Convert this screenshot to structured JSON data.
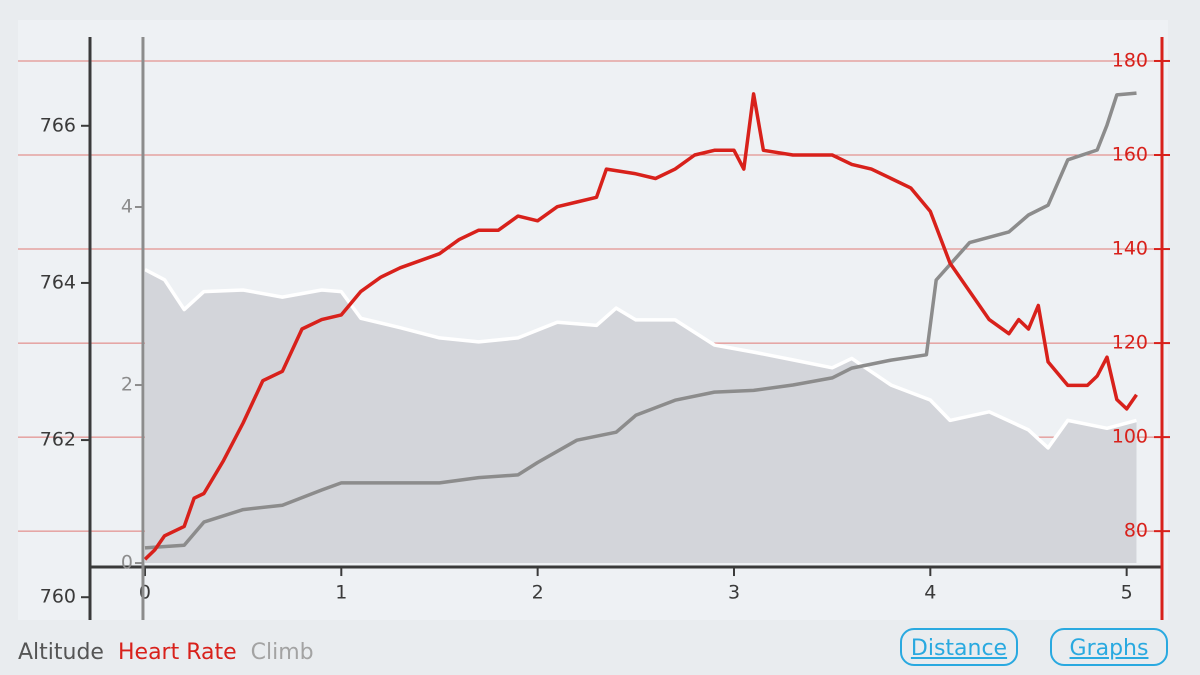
{
  "chart_data": {
    "type": "line",
    "xlim": [
      -0.28,
      5.18
    ],
    "xticks": [
      0,
      1,
      2,
      3,
      4,
      5
    ],
    "ylim": [
      759.71,
      767.13
    ],
    "yticks": [
      760,
      762,
      764,
      766
    ],
    "y2lim": [
      -0.64,
      5.91
    ],
    "y2ticks": [
      0,
      2,
      4
    ],
    "y3lim": [
      61.1,
      185.1
    ],
    "y3ticks": [
      80,
      100,
      120,
      140,
      160,
      180
    ],
    "grid": true,
    "series": [
      {
        "name": "Altitude",
        "color": "#ffffff",
        "fill": "#d3d5da",
        "axis": "y",
        "x": [
          0,
          0.1,
          0.2,
          0.3,
          0.5,
          0.7,
          0.9,
          1.0,
          1.1,
          1.3,
          1.5,
          1.7,
          1.9,
          2.1,
          2.3,
          2.4,
          2.5,
          2.7,
          2.9,
          3.1,
          3.3,
          3.5,
          3.6,
          3.8,
          4.0,
          4.1,
          4.3,
          4.5,
          4.6,
          4.7,
          4.9,
          5.05
        ],
        "values": [
          764.17,
          764.04,
          763.66,
          763.89,
          763.91,
          763.82,
          763.91,
          763.89,
          763.55,
          763.43,
          763.3,
          763.25,
          763.3,
          763.5,
          763.46,
          763.68,
          763.53,
          763.53,
          763.21,
          763.12,
          763.02,
          762.92,
          763.04,
          762.7,
          762.51,
          762.25,
          762.36,
          762.13,
          761.9,
          762.25,
          762.15,
          762.25
        ]
      },
      {
        "name": "Heart Rate",
        "color": "#d8211b",
        "axis": "y3",
        "x": [
          0,
          0.05,
          0.1,
          0.2,
          0.25,
          0.3,
          0.4,
          0.5,
          0.6,
          0.7,
          0.8,
          0.9,
          1.0,
          1.1,
          1.2,
          1.3,
          1.5,
          1.6,
          1.7,
          1.8,
          1.9,
          2.0,
          2.1,
          2.2,
          2.3,
          2.35,
          2.5,
          2.6,
          2.7,
          2.8,
          2.9,
          3.0,
          3.05,
          3.1,
          3.15,
          3.3,
          3.5,
          3.6,
          3.7,
          3.8,
          3.9,
          4.0,
          4.1,
          4.2,
          4.3,
          4.4,
          4.45,
          4.5,
          4.55,
          4.6,
          4.7,
          4.8,
          4.85,
          4.9,
          4.95,
          5.0,
          5.05
        ],
        "values": [
          74,
          76,
          79,
          81,
          87,
          88,
          95,
          103,
          112,
          114,
          123,
          125,
          126,
          131,
          134,
          136,
          139,
          142,
          144,
          144,
          147,
          146,
          149,
          150,
          151,
          157,
          156,
          155,
          157,
          160,
          161,
          161,
          157,
          173,
          161,
          160,
          160,
          158,
          157,
          155,
          153,
          148,
          137,
          131,
          125,
          122,
          125,
          123,
          128,
          116,
          111,
          111,
          113,
          117,
          108,
          106,
          109
        ]
      },
      {
        "name": "Climb",
        "color": "#8c8c8c",
        "axis": "y2",
        "x": [
          0,
          0.2,
          0.3,
          0.5,
          0.7,
          0.9,
          1.0,
          1.5,
          1.7,
          1.9,
          2.0,
          2.2,
          2.4,
          2.5,
          2.7,
          2.9,
          3.1,
          3.3,
          3.5,
          3.6,
          3.8,
          3.98,
          4.03,
          4.2,
          4.4,
          4.5,
          4.6,
          4.7,
          4.85,
          4.9,
          4.95,
          5.05
        ],
        "values": [
          0.17,
          0.2,
          0.46,
          0.6,
          0.65,
          0.82,
          0.9,
          0.9,
          0.96,
          0.99,
          1.13,
          1.38,
          1.47,
          1.66,
          1.83,
          1.92,
          1.94,
          2.0,
          2.08,
          2.19,
          2.28,
          2.34,
          3.18,
          3.6,
          3.72,
          3.91,
          4.02,
          4.53,
          4.64,
          4.92,
          5.26,
          5.28
        ]
      }
    ]
  },
  "buttons": [
    "Distance",
    "Graphs"
  ]
}
